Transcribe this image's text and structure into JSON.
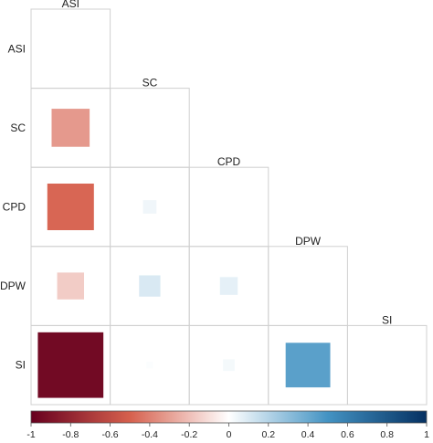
{
  "chart_data": {
    "type": "heatmap",
    "subtype": "correlation-matrix-lower-triangle",
    "variables": [
      "ASI",
      "SC",
      "CPD",
      "DPW",
      "SI"
    ],
    "matrix": [
      [
        null,
        null,
        null,
        null,
        null
      ],
      [
        -0.32,
        null,
        null,
        null,
        null
      ],
      [
        -0.48,
        0.04,
        null,
        null,
        null
      ],
      [
        -0.16,
        0.1,
        0.07,
        null,
        null
      ],
      [
        -0.95,
        0.01,
        0.03,
        0.44,
        null
      ]
    ],
    "colorbar": {
      "min": -1,
      "max": 1,
      "ticks": [
        -1,
        -0.8,
        -0.6,
        -0.4,
        -0.2,
        0,
        0.2,
        0.4,
        0.6,
        0.8,
        1
      ],
      "colors": {
        "neg_end": "#67001f",
        "neg_mid": "#d6604d",
        "center": "#ffffff",
        "pos_mid": "#4393c3",
        "pos_end": "#053061"
      }
    },
    "grid": true,
    "legend": "bottom"
  }
}
